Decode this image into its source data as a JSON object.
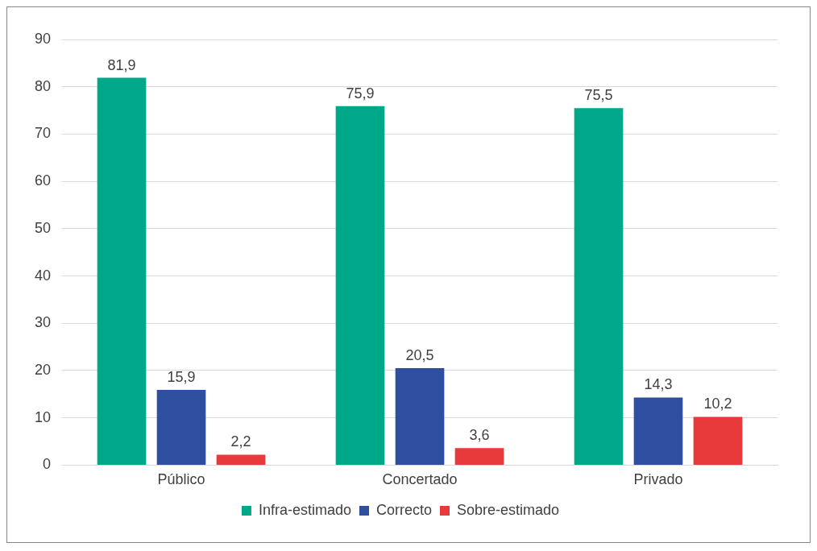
{
  "chart_data": {
    "type": "bar",
    "categories": [
      "Público",
      "Concertado",
      "Privado"
    ],
    "series": [
      {
        "name": "Infra-estimado",
        "color": "#00a88a",
        "values": [
          81.9,
          75.9,
          75.5
        ],
        "value_labels": [
          "81,9",
          "75,9",
          "75,5"
        ]
      },
      {
        "name": "Correcto",
        "color": "#2e4fa0",
        "values": [
          15.9,
          20.5,
          14.3
        ],
        "value_labels": [
          "15,9",
          "20,5",
          "14,3"
        ]
      },
      {
        "name": "Sobre-estimado",
        "color": "#e8393b",
        "values": [
          2.2,
          3.6,
          10.2
        ],
        "value_labels": [
          "2,2",
          "3,6",
          "10,2"
        ]
      }
    ],
    "ylim": [
      0,
      90
    ],
    "yticks": [
      0,
      10,
      20,
      30,
      40,
      50,
      60,
      70,
      80,
      90
    ],
    "grid": "y",
    "legend": "bottom"
  }
}
